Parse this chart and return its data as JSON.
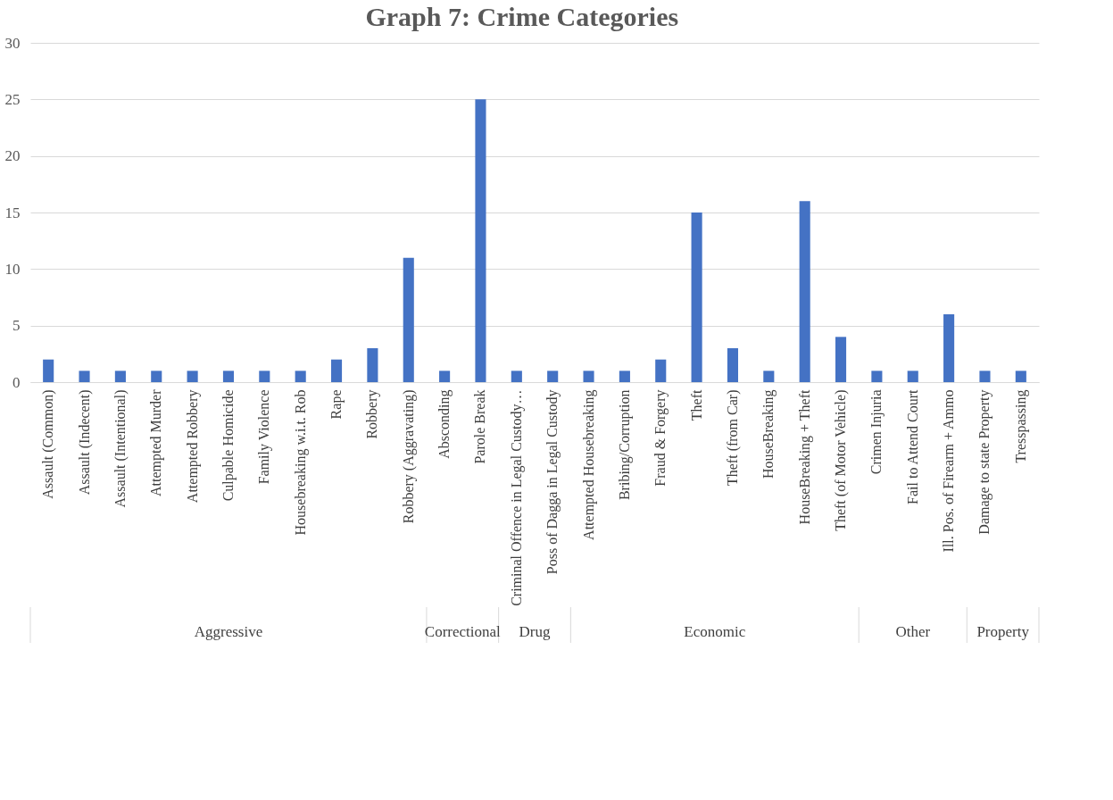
{
  "chart_data": {
    "type": "bar",
    "title": "Graph 7: Crime Categories",
    "categories": [
      "Assault (Common)",
      "Assault (Indecent)",
      "Assault (Intentional)",
      "Attempted Murder",
      "Attempted Robbery",
      "Culpable Homicide",
      "Family Violence",
      "Housebreaking w.i.t. Rob",
      "Rape",
      "Robbery",
      "Robbery (Aggravating)",
      "Absconding",
      "Parole Break",
      "Criminal Offence in Legal Custody…",
      "Poss of Dagga in Legal Custody",
      "Attempted Housebreaking",
      "Bribing/Corruption",
      "Fraud & Forgery",
      "Theft",
      "Theft (from Car)",
      "HouseBreaking",
      "HouseBreaking + Theft",
      "Theft (of Motor Vehicle)",
      "Crimen Injuria",
      "Fail to Attend Court",
      "Ill. Pos. of Firearm + Ammo",
      "Damage to state Property",
      "Tresspassing"
    ],
    "values": [
      2,
      1,
      1,
      1,
      1,
      1,
      1,
      1,
      2,
      3,
      11,
      1,
      25,
      1,
      1,
      1,
      1,
      2,
      15,
      3,
      1,
      16,
      4,
      1,
      1,
      6,
      1,
      1
    ],
    "color": "#4472c4",
    "ylim": [
      0,
      30
    ],
    "yticks": [
      0,
      5,
      10,
      15,
      20,
      25,
      30
    ],
    "grid": "y",
    "annotations": [
      "Aggressive",
      "Correctional",
      "Drug",
      "Economic",
      "Other",
      "Property"
    ]
  }
}
